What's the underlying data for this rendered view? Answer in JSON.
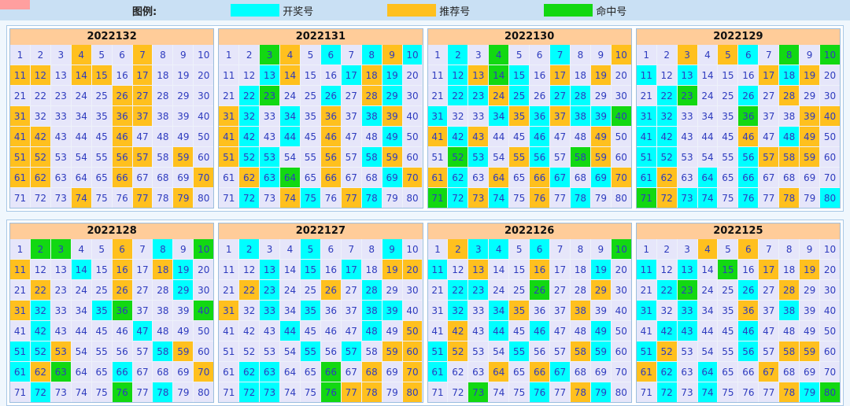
{
  "legend": {
    "label": "图例:",
    "items": [
      {
        "name": "开奖号",
        "color": "#00ffff"
      },
      {
        "name": "推荐号",
        "color": "#ffc01e"
      },
      {
        "name": "命中号",
        "color": "#12d812"
      }
    ]
  },
  "colors": {
    "draw": "#00ffff",
    "rec": "#ffc01e",
    "hit": "#12d812",
    "cell_default": "#e6e6fa",
    "cell_text": "#2e3bbe",
    "header_bg": "#ffcc99",
    "topbar_bg": "#c9e0f4",
    "corner_chip": "#ff9f9f",
    "gridline": "#eef2fa",
    "panel_border": "#9cbede",
    "block_border": "#a8c8e6"
  },
  "chart_data": {
    "type": "heatmap",
    "title": "",
    "description": "Lottery trend chart: numbers 1-80 per period. Cell states: draw = 开奖号 (cyan), rec = 推荐号 (orange), hit = 命中号 (green, drawn and recommended). Period 2022132 has no draw yet (recommendations only).",
    "number_range": [
      1,
      80
    ],
    "columns_per_row": 10,
    "legend_position": "top",
    "panels": [
      {
        "period": "2022132",
        "hit": [],
        "draw": [],
        "rec": [
          4,
          7,
          11,
          12,
          14,
          15,
          17,
          26,
          27,
          31,
          36,
          37,
          41,
          42,
          46,
          51,
          52,
          56,
          57,
          59,
          61,
          62,
          66,
          70,
          74,
          77,
          79
        ]
      },
      {
        "period": "2022131",
        "hit": [
          3,
          23,
          64
        ],
        "draw": [
          6,
          8,
          10,
          13,
          17,
          19,
          22,
          26,
          29,
          32,
          34,
          38,
          42,
          44,
          49,
          52,
          53,
          58,
          63,
          69,
          72,
          75,
          78
        ],
        "rec": [
          4,
          9,
          14,
          18,
          28,
          31,
          36,
          39,
          41,
          46,
          51,
          56,
          59,
          62,
          66,
          70,
          74,
          77
        ]
      },
      {
        "period": "2022130",
        "hit": [
          4,
          14,
          40,
          52,
          58,
          71
        ],
        "draw": [
          2,
          7,
          12,
          15,
          22,
          23,
          25,
          27,
          28,
          31,
          34,
          36,
          38,
          39,
          42,
          46,
          53,
          56,
          62,
          67,
          69,
          72,
          74,
          78
        ],
        "rec": [
          10,
          13,
          17,
          19,
          24,
          35,
          37,
          41,
          43,
          49,
          55,
          59,
          61,
          64,
          66,
          70,
          73,
          76
        ]
      },
      {
        "period": "2022129",
        "hit": [
          8,
          10,
          23,
          36,
          71
        ],
        "draw": [
          6,
          11,
          13,
          18,
          22,
          26,
          31,
          32,
          41,
          42,
          48,
          51,
          52,
          56,
          61,
          64,
          66,
          73,
          74,
          76,
          80
        ],
        "rec": [
          3,
          5,
          17,
          19,
          28,
          39,
          40,
          46,
          49,
          57,
          58,
          59,
          62,
          72,
          78
        ]
      },
      {
        "period": "2022128",
        "hit": [
          2,
          3,
          10,
          36,
          40,
          63,
          76
        ],
        "draw": [
          8,
          14,
          19,
          29,
          32,
          35,
          42,
          47,
          51,
          52,
          58,
          61,
          66,
          72,
          78
        ],
        "rec": [
          6,
          11,
          16,
          18,
          22,
          26,
          31,
          53,
          59,
          62,
          70
        ]
      },
      {
        "period": "2022127",
        "hit": [
          66,
          76
        ],
        "draw": [
          2,
          5,
          9,
          13,
          15,
          17,
          23,
          28,
          33,
          35,
          38,
          39,
          44,
          48,
          55,
          57,
          62,
          63,
          72,
          73
        ],
        "rec": [
          19,
          20,
          22,
          26,
          31,
          50,
          59,
          60,
          68,
          70,
          77,
          78,
          80
        ]
      },
      {
        "period": "2022126",
        "hit": [
          10,
          26,
          73
        ],
        "draw": [
          3,
          4,
          6,
          11,
          19,
          22,
          23,
          32,
          34,
          44,
          46,
          49,
          51,
          55,
          59,
          61,
          67,
          76,
          79
        ],
        "rec": [
          2,
          13,
          16,
          29,
          35,
          38,
          42,
          52,
          58,
          64,
          66,
          78
        ]
      },
      {
        "period": "2022125",
        "hit": [
          15,
          23,
          80
        ],
        "draw": [
          11,
          13,
          22,
          26,
          31,
          33,
          38,
          42,
          43,
          46,
          51,
          56,
          62,
          64,
          72,
          74,
          79
        ],
        "rec": [
          4,
          6,
          17,
          19,
          28,
          36,
          52,
          58,
          59,
          61,
          67,
          78
        ]
      }
    ]
  }
}
